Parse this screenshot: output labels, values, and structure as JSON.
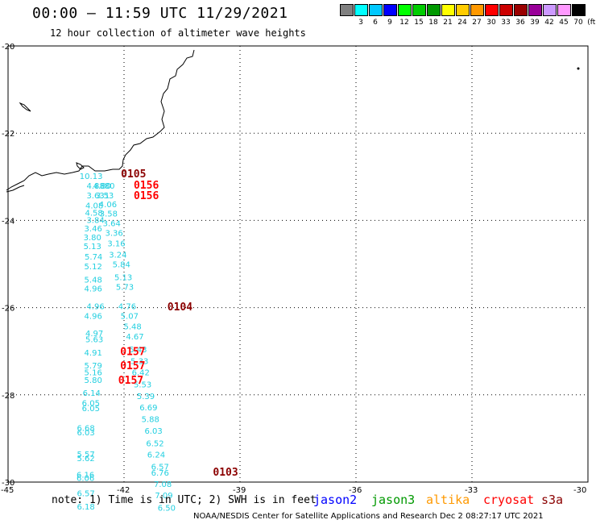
{
  "header": {
    "title": "00:00 – 11:59 UTC 11/29/2021",
    "subtitle": "12 hour collection of altimeter wave heights"
  },
  "legend": {
    "unit_label": "(ft)",
    "bins": [
      {
        "label": "",
        "color": "#808080"
      },
      {
        "label": "3",
        "color": "#00ffff"
      },
      {
        "label": "6",
        "color": "#00c8ff"
      },
      {
        "label": "9",
        "color": "#0000ff"
      },
      {
        "label": "12",
        "color": "#00ff00"
      },
      {
        "label": "15",
        "color": "#00cc00"
      },
      {
        "label": "18",
        "color": "#009900"
      },
      {
        "label": "21",
        "color": "#ffff00"
      },
      {
        "label": "24",
        "color": "#ffcc00"
      },
      {
        "label": "27",
        "color": "#ff9900"
      },
      {
        "label": "30",
        "color": "#ff0000"
      },
      {
        "label": "33",
        "color": "#cc0000"
      },
      {
        "label": "36",
        "color": "#990000"
      },
      {
        "label": "39",
        "color": "#990099"
      },
      {
        "label": "42",
        "color": "#cc99ff"
      },
      {
        "label": "45",
        "color": "#ff99ff"
      },
      {
        "label": "70",
        "color": "#000000"
      }
    ]
  },
  "axes": {
    "lat_ticks": [
      "-20",
      "-22",
      "-24",
      "-26",
      "-28",
      "-30"
    ],
    "lon_ticks": [
      "-45",
      "-42",
      "-39",
      "-36",
      "-33",
      "-30"
    ]
  },
  "colors": {
    "swh_points": "#22cfe0",
    "time_dark": "#8b0000",
    "time_red": "#ff0000",
    "coast": "#000000"
  },
  "swh_points": [
    {
      "lat": -22.98,
      "lon": -42.9,
      "v": "10.13",
      "c": "#2a3cd0"
    },
    {
      "lat": -23.2,
      "lon": -42.72,
      "v": "4.8880",
      "c": "#22cfe0"
    },
    {
      "lat": -23.42,
      "lon": -42.72,
      "v": "3.631",
      "c": "#22cfe0"
    },
    {
      "lat": -23.65,
      "lon": -42.75,
      "v": "4.08",
      "c": "#22cfe0"
    },
    {
      "lat": -23.82,
      "lon": -42.76,
      "v": "4.58",
      "c": "#22cfe0"
    },
    {
      "lat": -23.98,
      "lon": -42.72,
      "v": "3.84",
      "c": "#22cfe0"
    },
    {
      "lat": -24.18,
      "lon": -42.78,
      "v": "3.46",
      "c": "#22cfe0"
    },
    {
      "lat": -24.38,
      "lon": -42.8,
      "v": "3.80",
      "c": "#22cfe0"
    },
    {
      "lat": -24.58,
      "lon": -42.8,
      "v": "5.13",
      "c": "#22cfe0"
    },
    {
      "lat": -24.82,
      "lon": -42.77,
      "v": "5.74",
      "c": "#22cfe0"
    },
    {
      "lat": -25.05,
      "lon": -42.78,
      "v": "5.12",
      "c": "#22cfe0"
    },
    {
      "lat": -25.35,
      "lon": -42.78,
      "v": "5.48",
      "c": "#22cfe0"
    },
    {
      "lat": -25.55,
      "lon": -42.78,
      "v": "4.96",
      "c": "#22cfe0"
    },
    {
      "lat": -25.96,
      "lon": -42.72,
      "v": "4.96",
      "c": "#22cfe0"
    },
    {
      "lat": -26.18,
      "lon": -42.78,
      "v": "4.96",
      "c": "#22cfe0"
    },
    {
      "lat": -26.58,
      "lon": -42.75,
      "v": "4.97",
      "c": "#22cfe0"
    },
    {
      "lat": -26.72,
      "lon": -42.75,
      "v": "5.63",
      "c": "#22cfe0"
    },
    {
      "lat": -27.02,
      "lon": -42.78,
      "v": "4.91",
      "c": "#22cfe0"
    },
    {
      "lat": -27.32,
      "lon": -42.78,
      "v": "5.79",
      "c": "#22cfe0"
    },
    {
      "lat": -27.48,
      "lon": -42.78,
      "v": "5.16",
      "c": "#22cfe0"
    },
    {
      "lat": -27.65,
      "lon": -42.78,
      "v": "5.80",
      "c": "#22cfe0"
    },
    {
      "lat": -27.95,
      "lon": -42.82,
      "v": "6.14",
      "c": "#22cfe0"
    },
    {
      "lat": -28.18,
      "lon": -42.84,
      "v": "6.05",
      "c": "#22cfe0"
    },
    {
      "lat": -28.3,
      "lon": -42.84,
      "v": "6.05",
      "c": "#22cfe0"
    },
    {
      "lat": -28.75,
      "lon": -42.97,
      "v": "6.68",
      "c": "#22cfe0"
    },
    {
      "lat": -28.85,
      "lon": -42.97,
      "v": "6.03",
      "c": "#22cfe0"
    },
    {
      "lat": -29.35,
      "lon": -42.97,
      "v": "5.57",
      "c": "#22cfe0"
    },
    {
      "lat": -29.45,
      "lon": -42.97,
      "v": "5.62",
      "c": "#22cfe0"
    },
    {
      "lat": -29.82,
      "lon": -42.98,
      "v": "6.16",
      "c": "#22cfe0"
    },
    {
      "lat": -29.9,
      "lon": -42.98,
      "v": "6.06",
      "c": "#22cfe0"
    },
    {
      "lat": -30.25,
      "lon": -42.97,
      "v": "6.57",
      "c": "#22cfe0"
    },
    {
      "lat": -30.55,
      "lon": -42.97,
      "v": "6.18",
      "c": "#22cfe0"
    },
    {
      "lat": -23.2,
      "lon": -42.55,
      "v": "4.80",
      "c": "#22cfe0"
    },
    {
      "lat": -23.42,
      "lon": -42.48,
      "v": "3.53",
      "c": "#22cfe0"
    },
    {
      "lat": -23.62,
      "lon": -42.4,
      "v": "4.06",
      "c": "#22cfe0"
    },
    {
      "lat": -23.84,
      "lon": -42.38,
      "v": "3.58",
      "c": "#22cfe0"
    },
    {
      "lat": -24.06,
      "lon": -42.3,
      "v": "3.64",
      "c": "#22cfe0"
    },
    {
      "lat": -24.28,
      "lon": -42.24,
      "v": "3.36",
      "c": "#22cfe0"
    },
    {
      "lat": -24.52,
      "lon": -42.18,
      "v": "3.16",
      "c": "#22cfe0"
    },
    {
      "lat": -24.78,
      "lon": -42.14,
      "v": "3.24",
      "c": "#22cfe0"
    },
    {
      "lat": -25.0,
      "lon": -42.05,
      "v": "5.84",
      "c": "#22cfe0"
    },
    {
      "lat": -25.3,
      "lon": -42.0,
      "v": "5.13",
      "c": "#22cfe0"
    },
    {
      "lat": -25.52,
      "lon": -41.96,
      "v": "5.73",
      "c": "#22cfe0"
    },
    {
      "lat": -25.96,
      "lon": -41.9,
      "v": "4.76",
      "c": "#22cfe0"
    },
    {
      "lat": -26.18,
      "lon": -41.84,
      "v": "5.07",
      "c": "#22cfe0"
    },
    {
      "lat": -26.42,
      "lon": -41.76,
      "v": "5.48",
      "c": "#22cfe0"
    },
    {
      "lat": -26.65,
      "lon": -41.7,
      "v": "4.67",
      "c": "#22cfe0"
    },
    {
      "lat": -26.95,
      "lon": -41.62,
      "v": "5.43",
      "c": "#22cfe0"
    },
    {
      "lat": -27.22,
      "lon": -41.58,
      "v": "5.33",
      "c": "#22cfe0"
    },
    {
      "lat": -27.48,
      "lon": -41.55,
      "v": "6.42",
      "c": "#22cfe0"
    },
    {
      "lat": -27.75,
      "lon": -41.5,
      "v": "5.53",
      "c": "#22cfe0"
    },
    {
      "lat": -28.02,
      "lon": -41.42,
      "v": "5.39",
      "c": "#22cfe0"
    },
    {
      "lat": -28.28,
      "lon": -41.35,
      "v": "6.69",
      "c": "#22cfe0"
    },
    {
      "lat": -28.55,
      "lon": -41.3,
      "v": "5.88",
      "c": "#22cfe0"
    },
    {
      "lat": -28.82,
      "lon": -41.22,
      "v": "6.03",
      "c": "#22cfe0"
    },
    {
      "lat": -29.1,
      "lon": -41.18,
      "v": "6.52",
      "c": "#22cfe0"
    },
    {
      "lat": -29.36,
      "lon": -41.15,
      "v": "6.24",
      "c": "#22cfe0"
    },
    {
      "lat": -29.64,
      "lon": -41.05,
      "v": "6.57",
      "c": "#22cfe0"
    },
    {
      "lat": -29.78,
      "lon": -41.05,
      "v": "6.76",
      "c": "#22cfe0"
    },
    {
      "lat": -30.04,
      "lon": -40.98,
      "v": "7.08",
      "c": "#22cfe0"
    },
    {
      "lat": -30.3,
      "lon": -40.95,
      "v": "7.09",
      "c": "#22cfe0"
    },
    {
      "lat": -30.58,
      "lon": -40.88,
      "v": "6.50",
      "c": "#22cfe0"
    }
  ],
  "time_labels": [
    {
      "lat": -22.92,
      "lon": -42.08,
      "v": "0105",
      "c": "#8b0000"
    },
    {
      "lat": -23.18,
      "lon": -41.75,
      "v": "0156",
      "c": "#ff0000"
    },
    {
      "lat": -23.42,
      "lon": -41.75,
      "v": "0156",
      "c": "#ff0000"
    },
    {
      "lat": -25.97,
      "lon": -40.88,
      "v": "0104",
      "c": "#8b0000"
    },
    {
      "lat": -27.0,
      "lon": -42.1,
      "v": "0157",
      "c": "#ff0000"
    },
    {
      "lat": -27.32,
      "lon": -42.1,
      "v": "0157",
      "c": "#ff0000"
    },
    {
      "lat": -27.65,
      "lon": -42.15,
      "v": "0157",
      "c": "#ff0000"
    },
    {
      "lat": -29.76,
      "lon": -39.7,
      "v": "0103",
      "c": "#8b0000"
    }
  ],
  "footer": {
    "note": "note: 1) Time is in UTC; 2) SWH is in feet",
    "missions": [
      {
        "name": "jason2",
        "color": "#0000ff"
      },
      {
        "name": "jason3",
        "color": "#009900"
      },
      {
        "name": "altika",
        "color": "#ff9900"
      },
      {
        "name": "cryosat",
        "color": "#ff0000"
      },
      {
        "name": "s3a",
        "color": "#8b0000"
      }
    ],
    "credit": "NOAA/NESDIS Center for Satellite Applications and Research    Dec  2 08:27:17 UTC 2021"
  }
}
